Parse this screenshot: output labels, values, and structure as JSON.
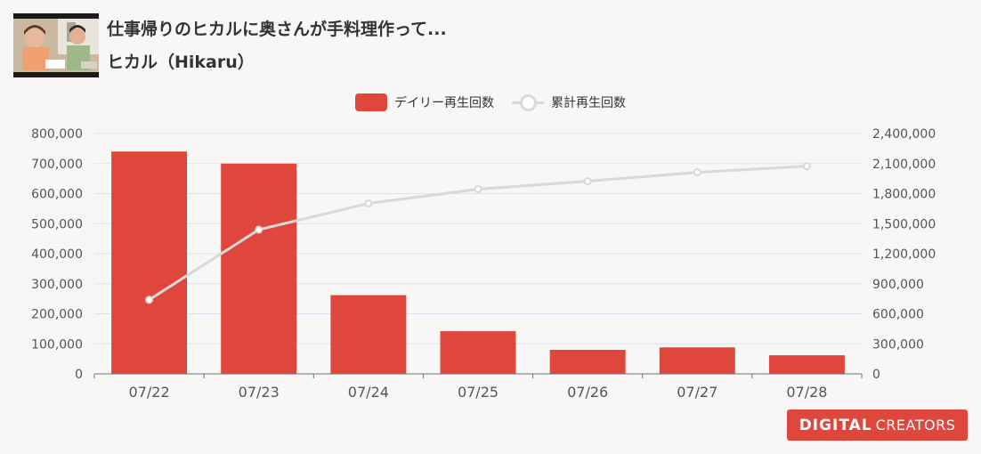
{
  "header": {
    "title": "仕事帰りのヒカルに奥さんが手料理作って...",
    "channel": "ヒカル（Hikaru）"
  },
  "legend": {
    "bar_label": "デイリー再生回数",
    "line_label": "累計再生回数"
  },
  "logo": {
    "bold": "DIGITAL",
    "light": "CREATORS"
  },
  "colors": {
    "bar": "#e0473c",
    "line": "#d9d9d9",
    "grid": "#dde3ee",
    "axis_text": "#555555"
  },
  "chart_data": {
    "type": "bar",
    "categories": [
      "07/22",
      "07/23",
      "07/24",
      "07/25",
      "07/26",
      "07/27",
      "07/28"
    ],
    "series": [
      {
        "name": "デイリー再生回数",
        "type": "bar",
        "axis": "left",
        "values": [
          740000,
          700000,
          262000,
          142000,
          80000,
          88000,
          62000
        ]
      },
      {
        "name": "累計再生回数",
        "type": "line",
        "axis": "right",
        "values": [
          740000,
          1440000,
          1702000,
          1844000,
          1924000,
          2012000,
          2074000
        ]
      }
    ],
    "y_left": {
      "min": 0,
      "max": 800000,
      "ticks": [
        "0",
        "100,000",
        "200,000",
        "300,000",
        "400,000",
        "500,000",
        "600,000",
        "700,000",
        "800,000"
      ]
    },
    "y_right": {
      "min": 0,
      "max": 2400000,
      "ticks": [
        "0",
        "300,000",
        "600,000",
        "900,000",
        "1,200,000",
        "1,500,000",
        "1,800,000",
        "2,100,000",
        "2,400,000"
      ]
    },
    "grid": true,
    "legend_position": "top-center"
  }
}
